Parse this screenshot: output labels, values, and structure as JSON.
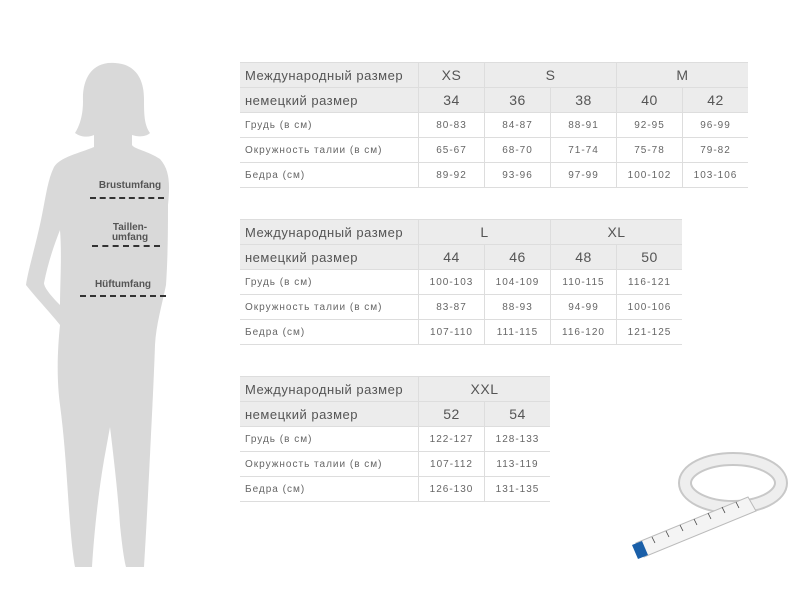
{
  "figure": {
    "labels": {
      "bust": "Brustumfang",
      "waist_1": "Taillen-",
      "waist_2": "umfang",
      "hip": "Hüftumfang"
    },
    "silhouette_color": "#d9d9d9"
  },
  "tables": [
    {
      "intl_label": "Международный размер",
      "intl_sizes": [
        {
          "label": "XS",
          "span": 1
        },
        {
          "label": "S",
          "span": 2
        },
        {
          "label": "M",
          "span": 2
        }
      ],
      "de_label": "немецкий размер",
      "de_sizes": [
        "34",
        "36",
        "38",
        "40",
        "42"
      ],
      "rows": [
        {
          "label": "Грудь (в см)",
          "values": [
            "80-83",
            "84-87",
            "88-91",
            "92-95",
            "96-99"
          ]
        },
        {
          "label": "Окружность талии (в см)",
          "values": [
            "65-67",
            "68-70",
            "71-74",
            "75-78",
            "79-82"
          ]
        },
        {
          "label": "Бедра (см)",
          "values": [
            "89-92",
            "93-96",
            "97-99",
            "100-102",
            "103-106"
          ]
        }
      ]
    },
    {
      "intl_label": "Международный размер",
      "intl_sizes": [
        {
          "label": "L",
          "span": 2
        },
        {
          "label": "XL",
          "span": 2
        }
      ],
      "de_label": "немецкий размер",
      "de_sizes": [
        "44",
        "46",
        "48",
        "50"
      ],
      "rows": [
        {
          "label": "Грудь (в см)",
          "values": [
            "100-103",
            "104-109",
            "110-115",
            "116-121"
          ]
        },
        {
          "label": "Окружность талии (в см)",
          "values": [
            "83-87",
            "88-93",
            "94-99",
            "100-106"
          ]
        },
        {
          "label": "Бедра (см)",
          "values": [
            "107-110",
            "111-115",
            "116-120",
            "121-125"
          ]
        }
      ]
    },
    {
      "intl_label": "Международный размер",
      "intl_sizes": [
        {
          "label": "XXL",
          "span": 2
        }
      ],
      "de_label": "немецкий размер",
      "de_sizes": [
        "52",
        "54"
      ],
      "rows": [
        {
          "label": "Грудь (в см)",
          "values": [
            "122-127",
            "128-133"
          ]
        },
        {
          "label": "Окружность талии (в см)",
          "values": [
            "107-112",
            "113-119"
          ]
        },
        {
          "label": "Бедра (см)",
          "values": [
            "126-130",
            "131-135"
          ]
        }
      ]
    }
  ],
  "tape_measure": {
    "icon": "measuring-tape-icon",
    "accent": "#1a5fa8"
  }
}
